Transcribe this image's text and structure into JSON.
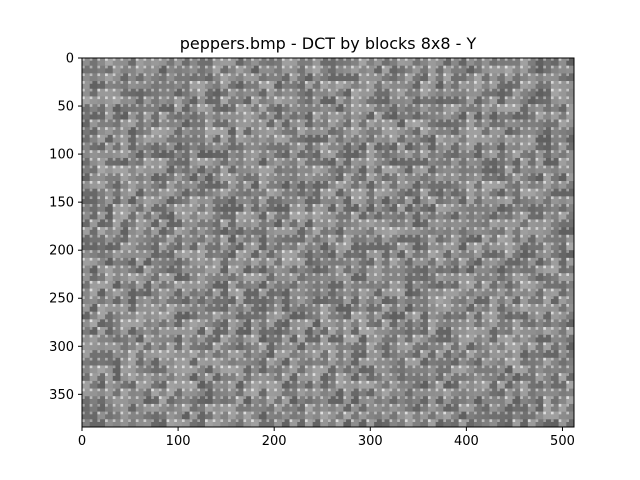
{
  "chart_data": {
    "type": "heatmap",
    "title": "peppers.bmp - DCT by blocks 8x8 - Y",
    "xlabel": "",
    "ylabel": "",
    "image_size": [
      512,
      384
    ],
    "block_size": 8,
    "colormap": "gray",
    "xlim": [
      0,
      512
    ],
    "ylim": [
      384,
      0
    ],
    "x_ticks": [
      0,
      100,
      200,
      300,
      400,
      500
    ],
    "y_ticks": [
      0,
      50,
      100,
      150,
      200,
      250,
      300,
      350
    ],
    "grid": false,
    "legend": "none"
  }
}
